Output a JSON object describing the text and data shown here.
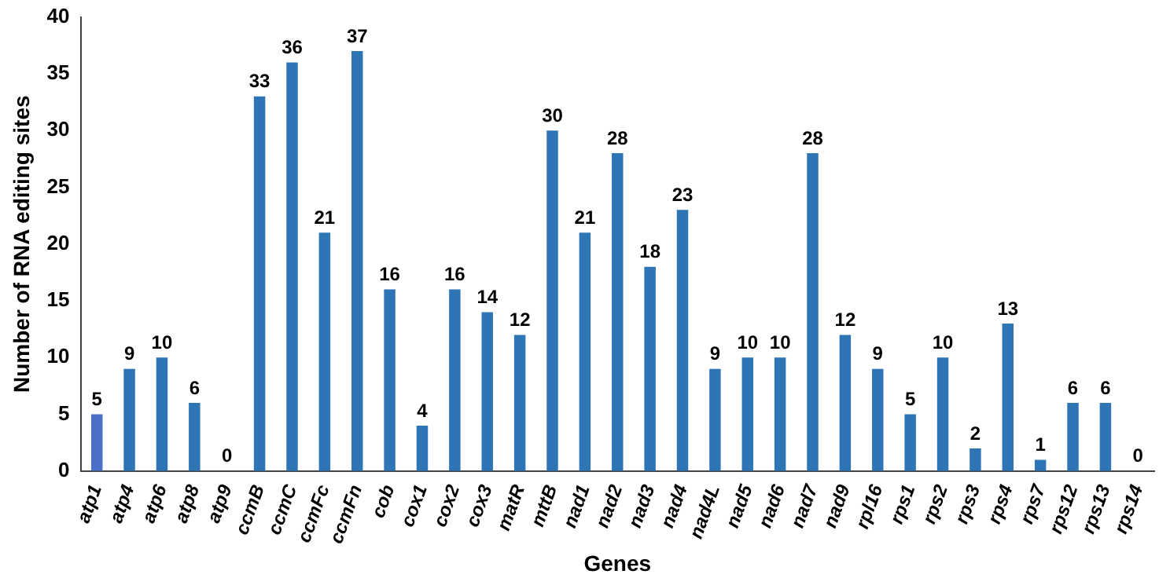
{
  "chart_data": {
    "type": "bar",
    "xlabel": "Genes",
    "ylabel": "Number of RNA editing sites",
    "categories": [
      "atp1",
      "atp4",
      "atp6",
      "atp8",
      "atp9",
      "ccmB",
      "ccmC",
      "ccmFc",
      "ccmFn",
      "cob",
      "cox1",
      "cox2",
      "cox3",
      "matR",
      "mttB",
      "nad1",
      "nad2",
      "nad3",
      "nad4",
      "nad4L",
      "nad5",
      "nad6",
      "nad7",
      "nad9",
      "rpl16",
      "rps1",
      "rps2",
      "rps3",
      "rps4",
      "rps7",
      "rps12",
      "rps13",
      "rps14"
    ],
    "values": [
      5,
      9,
      10,
      6,
      0,
      33,
      36,
      21,
      37,
      16,
      4,
      16,
      14,
      12,
      30,
      21,
      28,
      18,
      23,
      9,
      10,
      10,
      28,
      12,
      9,
      5,
      10,
      2,
      13,
      1,
      6,
      6,
      0
    ],
    "colors": [
      "#4a6fc8",
      "#2e75b6",
      "#2e75b6",
      "#2e75b6",
      "#2e75b6",
      "#2e75b6",
      "#2e75b6",
      "#2e75b6",
      "#2e75b6",
      "#2e75b6",
      "#2e75b6",
      "#2e75b6",
      "#2e75b6",
      "#2e75b6",
      "#2e75b6",
      "#2e75b6",
      "#2e75b6",
      "#2e75b6",
      "#2e75b6",
      "#2e75b6",
      "#2e75b6",
      "#2e75b6",
      "#2e75b6",
      "#2e75b6",
      "#2e75b6",
      "#2e75b6",
      "#2e75b6",
      "#2e75b6",
      "#2e75b6",
      "#2e75b6",
      "#2e75b6",
      "#2e75b6",
      "#2e75b6"
    ],
    "ylim": [
      0,
      40
    ],
    "yticks": [
      0,
      5,
      10,
      15,
      20,
      25,
      30,
      35,
      40
    ],
    "grid": false,
    "legend": false,
    "data_labels": true
  }
}
